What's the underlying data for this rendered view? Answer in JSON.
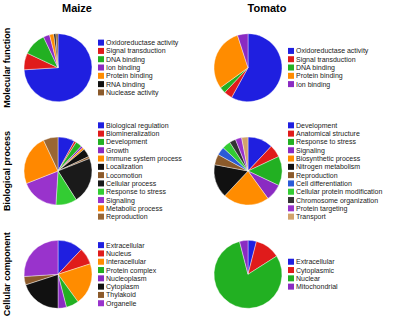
{
  "columns": [
    "Maize",
    "Tomato"
  ],
  "rows": [
    "Molecular function",
    "Biological process",
    "Cellular component"
  ],
  "chart_data": [
    {
      "type": "pie",
      "legend": "right",
      "categories": [
        "Oxidoreductase activity",
        "Signal transduction",
        "DNA binding",
        "Ion binding",
        "Protein binding",
        "RNA binding",
        "Nuclease activity"
      ],
      "values": [
        74,
        8,
        11,
        3,
        2,
        1,
        1
      ],
      "colors": [
        "#1f1fe0",
        "#e01b1b",
        "#22b022",
        "#8a2bc2",
        "#ff8c00",
        "#111111",
        "#8b5a2b"
      ]
    },
    {
      "type": "pie",
      "legend": "right",
      "categories": [
        "Oxidoreductase activity",
        "Signal transduction",
        "DNA binding",
        "Protein binding",
        "Ion binding"
      ],
      "values": [
        58,
        4,
        3,
        30,
        5
      ],
      "colors": [
        "#1f1fe0",
        "#e01b1b",
        "#22b022",
        "#ff8c00",
        "#8a2bc2"
      ]
    },
    {
      "type": "pie",
      "legend": "right",
      "categories": [
        "Biological regulation",
        "Biomineralization",
        "Development",
        "Growth",
        "Immune system process",
        "Localization",
        "Locomotion",
        "Cellular process",
        "Response to stress",
        "Signaling",
        "Metabolic process",
        "Reproduction"
      ],
      "values": [
        8,
        1,
        3,
        1,
        1,
        4,
        1,
        22,
        10,
        18,
        24,
        7
      ],
      "colors": [
        "#1f1fe0",
        "#e01b1b",
        "#22b022",
        "#8a2bc2",
        "#ff8c00",
        "#111111",
        "#8b5a2b",
        "#1a1a1a",
        "#33cc33",
        "#9933cc",
        "#ff8800",
        "#996633"
      ]
    },
    {
      "type": "pie",
      "legend": "right",
      "categories": [
        "Development",
        "Anatomical structure",
        "Response to stress",
        "Signaling",
        "Biosynthetic process",
        "Nitrogen metabolism",
        "Reproduction",
        "Cell differentiation",
        "Cellular protein modification",
        "Chromosome organization",
        "Protein targeting",
        "Transport"
      ],
      "values": [
        12,
        6,
        14,
        8,
        22,
        16,
        5,
        4,
        4,
        3,
        3,
        3
      ],
      "colors": [
        "#1f1fe0",
        "#e01b1b",
        "#22b022",
        "#8a2bc2",
        "#ff8c00",
        "#111111",
        "#8b5a2b",
        "#2a5bd7",
        "#33cc33",
        "#333333",
        "#9933cc",
        "#d2a36b"
      ]
    },
    {
      "type": "pie",
      "legend": "right",
      "categories": [
        "Extracellular",
        "Nucleus",
        "Interacellular",
        "Protein complex",
        "Nucleoplasm",
        "Cytoplasm",
        "Thylakoid",
        "Organelle"
      ],
      "values": [
        12,
        8,
        20,
        6,
        4,
        20,
        4,
        26
      ],
      "colors": [
        "#1f1fe0",
        "#e01b1b",
        "#ff8c00",
        "#22b022",
        "#8a2bc2",
        "#111111",
        "#8b5a2b",
        "#9933cc"
      ]
    },
    {
      "type": "pie",
      "legend": "right",
      "categories": [
        "Extracellular",
        "Cytoplasmic",
        "Nuclear",
        "Mitochondrial"
      ],
      "values": [
        4,
        12,
        80,
        4
      ],
      "colors": [
        "#1f1fe0",
        "#e01b1b",
        "#22b022",
        "#8a2bc2"
      ]
    }
  ]
}
